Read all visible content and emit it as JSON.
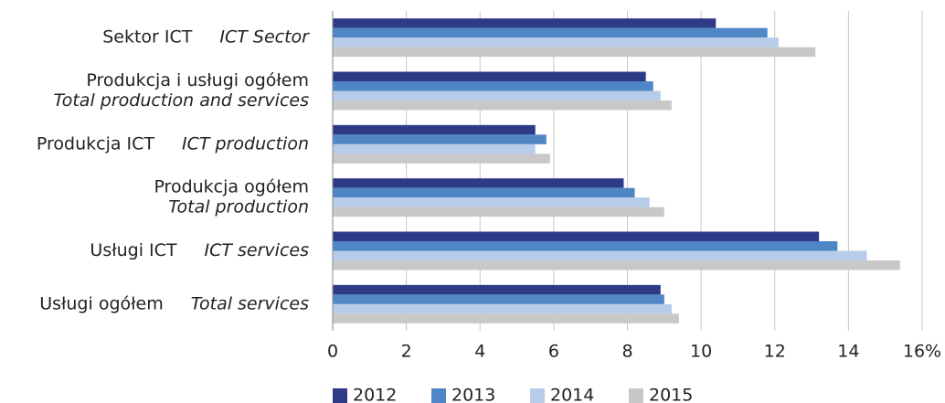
{
  "chart_data": {
    "type": "hbar",
    "categories": [
      "Sektor ICT",
      "Produkcja i usługi ogółem",
      "Produkcja ICT",
      "Produkcja ogółem",
      "Usługi ICT",
      "Usługi ogółem"
    ],
    "category_translations": [
      "ICT Sector",
      "Total production and services",
      "ICT production",
      "Total production",
      "ICT services",
      "Total services"
    ],
    "series": [
      {
        "name": "2012",
        "color": "#2e3a87",
        "values": [
          10.4,
          8.5,
          5.5,
          7.9,
          13.2,
          8.9
        ]
      },
      {
        "name": "2013",
        "color": "#4f86c6",
        "values": [
          11.8,
          8.7,
          5.8,
          8.2,
          13.7,
          9.0
        ]
      },
      {
        "name": "2014",
        "color": "#b7cce9",
        "values": [
          12.1,
          8.9,
          5.5,
          8.6,
          14.5,
          9.2
        ]
      },
      {
        "name": "2015",
        "color": "#c8c8c8",
        "values": [
          13.1,
          9.2,
          5.9,
          9.0,
          15.4,
          9.4
        ]
      }
    ],
    "xlim": [
      0,
      16
    ],
    "xticks": [
      0,
      2,
      4,
      6,
      8,
      10,
      12,
      14,
      {
        "value": 16,
        "label": "16%"
      }
    ],
    "grid": true,
    "legend": "bottom"
  }
}
